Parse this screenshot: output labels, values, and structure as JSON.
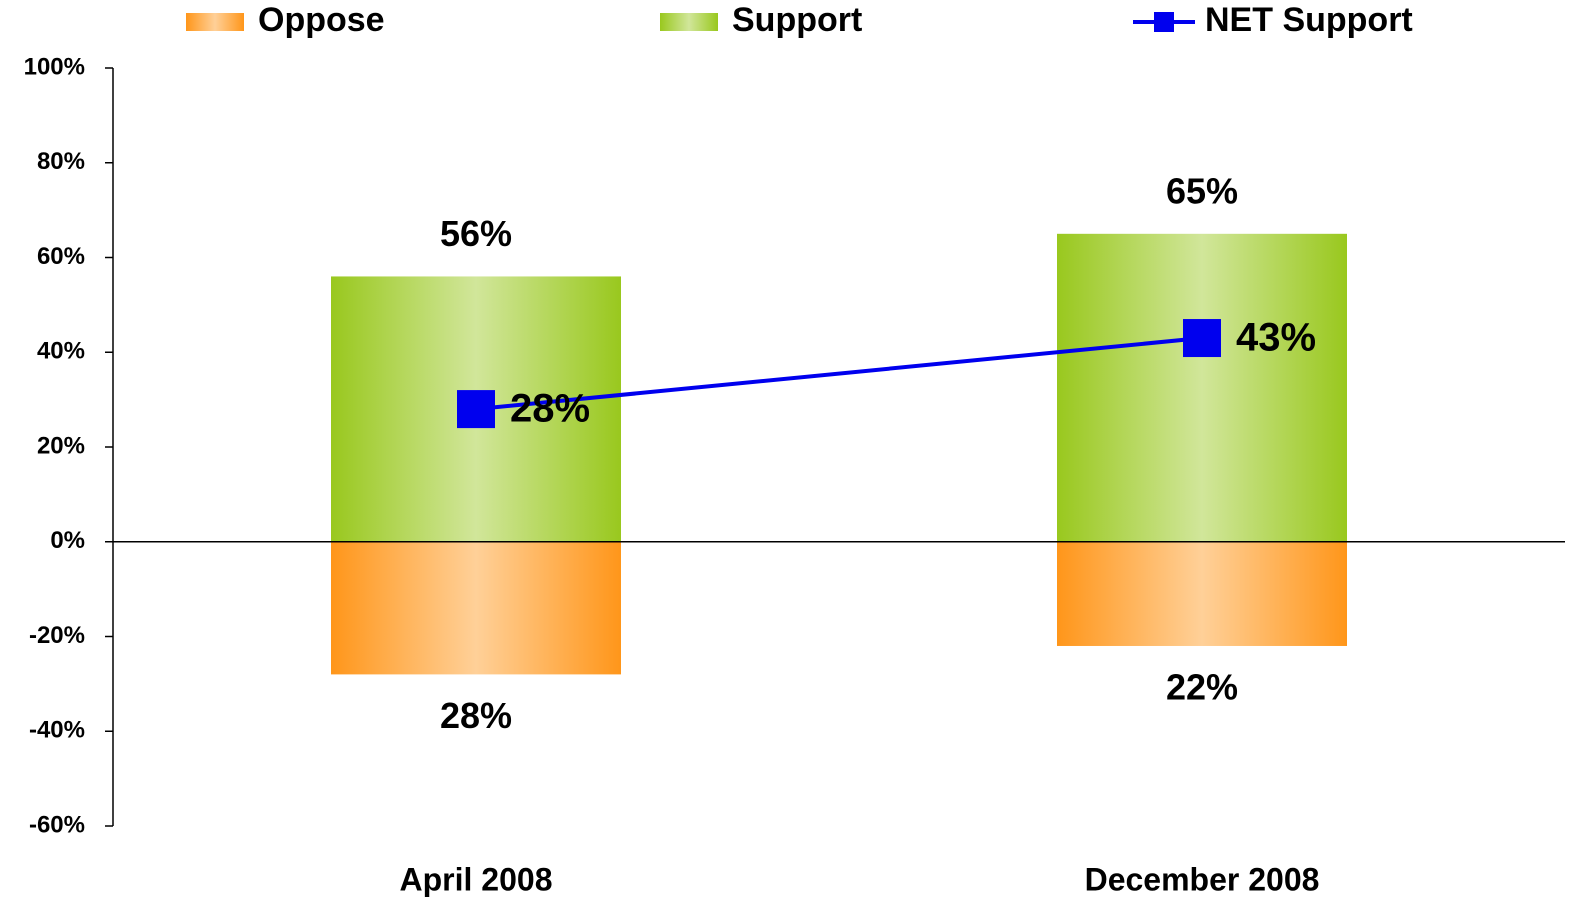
{
  "chart_data": {
    "type": "bar_line",
    "categories": [
      "April 2008",
      "December 2008"
    ],
    "series": [
      {
        "name": "Oppose",
        "type": "bar",
        "color": "#ff961a",
        "values": [
          -28,
          -22
        ],
        "value_labels": [
          "28%",
          "22%"
        ]
      },
      {
        "name": "Support",
        "type": "bar",
        "color": "#99c81e",
        "values": [
          56,
          65
        ],
        "value_labels": [
          "56%",
          "65%"
        ]
      },
      {
        "name": "NET Support",
        "type": "line",
        "color": "#0000ee",
        "values": [
          28,
          43
        ],
        "value_labels": [
          "28%",
          "43%"
        ]
      }
    ],
    "ylim": [
      -60,
      100
    ],
    "yticks": [
      {
        "value": -60,
        "label": "-60%"
      },
      {
        "value": -40,
        "label": "-40%"
      },
      {
        "value": -20,
        "label": "-20%"
      },
      {
        "value": 0,
        "label": "0%"
      },
      {
        "value": 20,
        "label": "20%"
      },
      {
        "value": 40,
        "label": "40%"
      },
      {
        "value": 60,
        "label": "60%"
      },
      {
        "value": 80,
        "label": "80%"
      },
      {
        "value": 100,
        "label": "100%"
      }
    ],
    "legend": "top"
  }
}
